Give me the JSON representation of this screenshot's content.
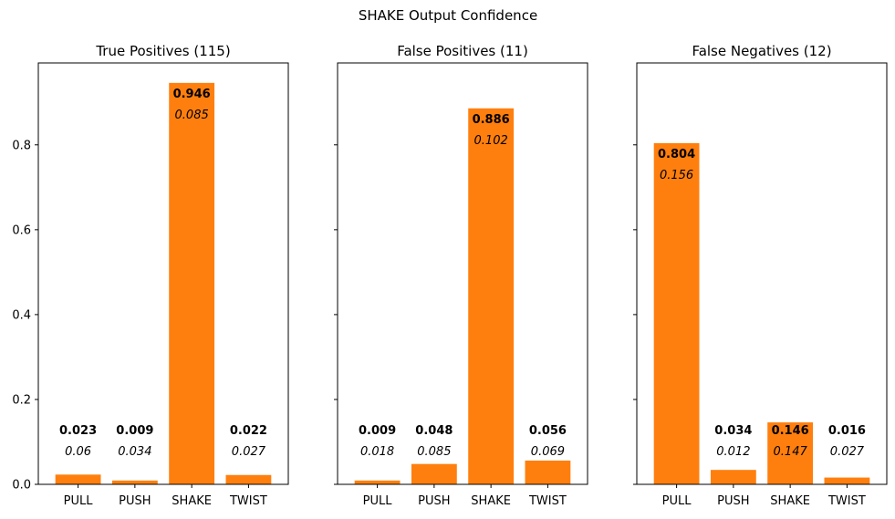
{
  "figure": {
    "suptitle": "SHAKE Output Confidence"
  },
  "chart_data": [
    {
      "type": "bar",
      "title": "True Positives (115)",
      "categories": [
        "PULL",
        "PUSH",
        "SHAKE",
        "TWIST"
      ],
      "values": [
        0.023,
        0.009,
        0.946,
        0.022
      ],
      "secondary_labels": [
        "0.06",
        "0.034",
        "0.085",
        "0.027"
      ],
      "value_labels": [
        "0.023",
        "0.009",
        "0.946",
        "0.022"
      ],
      "ylim": [
        0,
        0.993
      ],
      "yticks": [
        0.0,
        0.2,
        0.4,
        0.6,
        0.8
      ],
      "ytick_labels": [
        "0.0",
        "0.2",
        "0.4",
        "0.6",
        "0.8"
      ],
      "xlabel": "",
      "ylabel": "",
      "color": "#ff7f0e",
      "grid": false
    },
    {
      "type": "bar",
      "title": "False Positives (11)",
      "categories": [
        "PULL",
        "PUSH",
        "SHAKE",
        "TWIST"
      ],
      "values": [
        0.009,
        0.048,
        0.886,
        0.056
      ],
      "secondary_labels": [
        "0.018",
        "0.085",
        "0.102",
        "0.069"
      ],
      "value_labels": [
        "0.009",
        "0.048",
        "0.886",
        "0.056"
      ],
      "ylim": [
        0,
        0.993
      ],
      "yticks": [
        0.0,
        0.2,
        0.4,
        0.6,
        0.8
      ],
      "xlabel": "",
      "ylabel": "",
      "color": "#ff7f0e",
      "grid": false
    },
    {
      "type": "bar",
      "title": "False Negatives (12)",
      "categories": [
        "PULL",
        "PUSH",
        "SHAKE",
        "TWIST"
      ],
      "values": [
        0.804,
        0.034,
        0.146,
        0.016
      ],
      "secondary_labels": [
        "0.156",
        "0.012",
        "0.147",
        "0.027"
      ],
      "value_labels": [
        "0.804",
        "0.034",
        "0.146",
        "0.016"
      ],
      "ylim": [
        0,
        0.993
      ],
      "yticks": [
        0.0,
        0.2,
        0.4,
        0.6,
        0.8
      ],
      "xlabel": "",
      "ylabel": "",
      "color": "#ff7f0e",
      "grid": false
    }
  ]
}
